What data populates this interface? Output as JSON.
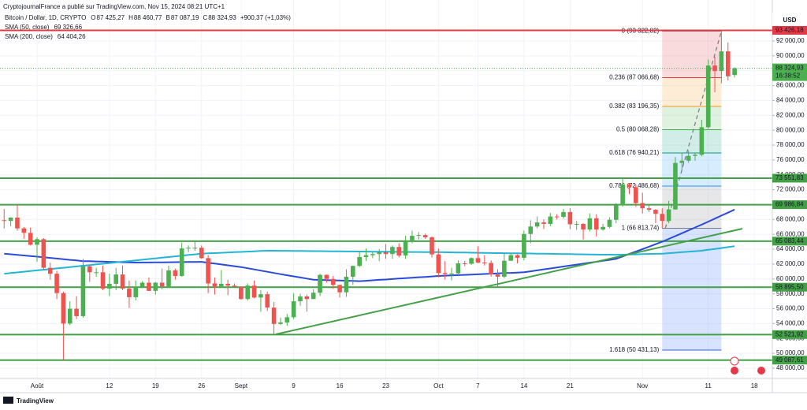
{
  "chart_data": {
    "type": "candlestick",
    "subtitle": "CryptojournalFrance a publié sur TradingView.com, Nov 15, 2024 08:21 UTC+1",
    "title": "Bitcoin / Dollar, 1D, CRYPTO",
    "quote": [
      {
        "key": "O",
        "text": "87 425,27"
      },
      {
        "key": "H",
        "text": "88 460,77"
      },
      {
        "key": "B",
        "text": "87 087,19"
      },
      {
        "key": "C",
        "text": "88 324,93"
      }
    ],
    "change": "+900,37 (+1,03%)",
    "currency": "USD",
    "source": "TradingView",
    "up_color": "#4caf50",
    "down_color": "#ef5350",
    "categories": [
      null,
      null,
      null,
      null,
      null,
      "Août",
      null,
      null,
      null,
      null,
      null,
      null,
      null,
      null,
      null,
      null,
      "12",
      null,
      null,
      null,
      null,
      null,
      null,
      "19",
      null,
      null,
      null,
      null,
      null,
      null,
      "26",
      null,
      null,
      null,
      null,
      null,
      "Sept",
      null,
      null,
      null,
      null,
      null,
      null,
      null,
      "9",
      null,
      null,
      null,
      null,
      null,
      null,
      "16",
      null,
      null,
      null,
      null,
      null,
      null,
      "23",
      null,
      null,
      null,
      null,
      null,
      null,
      null,
      "Oct",
      null,
      null,
      null,
      null,
      null,
      "7",
      null,
      null,
      null,
      null,
      null,
      null,
      "14",
      null,
      null,
      null,
      null,
      null,
      null,
      "21",
      null,
      null,
      null,
      null,
      null,
      null,
      null,
      null,
      null,
      null,
      "Nov",
      null,
      null,
      null,
      null,
      null,
      null,
      null,
      null,
      null,
      "11",
      null,
      null,
      null,
      null,
      null,
      null,
      "18"
    ],
    "open": [
      67900,
      67800,
      68250,
      66800,
      66200,
      64600,
      65350,
      61500,
      60700,
      58100,
      54000,
      56000,
      55000,
      61700,
      60900,
      60900,
      58700,
      59350,
      60600,
      58700,
      57550,
      58900,
      59500,
      58400,
      59500,
      59000,
      61150,
      60400,
      64100,
      64200,
      64200,
      62800,
      59400,
      59000,
      59350,
      59100,
      58950,
      57300,
      59100,
      57500,
      57950,
      56150,
      53950,
      54150,
      54850,
      57000,
      57650,
      57300,
      58150,
      60550,
      60000,
      59200,
      58200,
      60300,
      61750,
      62950,
      63200,
      63350,
      63600,
      63350,
      64300,
      63150,
      65200,
      65800,
      65900,
      65600,
      63300,
      60800,
      60650,
      60750,
      62100,
      62050,
      62800,
      62200,
      62150,
      60600,
      60300,
      62450,
      63200,
      62850,
      66050,
      67050,
      67600,
      67400,
      68400,
      68350,
      69000,
      67350,
      67400,
      66650,
      68150,
      66650,
      67000,
      67950,
      69900,
      72700,
      72350,
      70200,
      69500,
      69300,
      68750,
      67800,
      69350,
      75600,
      75900,
      76550,
      76700,
      80400,
      88700,
      87950,
      90600,
      87425.27,
      null,
      null,
      null
    ],
    "high": [
      69400,
      68300,
      70000,
      67000,
      66900,
      65600,
      65500,
      62200,
      61100,
      58300,
      57000,
      57700,
      62700,
      61800,
      61500,
      61800,
      60700,
      61500,
      61800,
      59800,
      59800,
      59700,
      60200,
      59600,
      61400,
      61800,
      61400,
      64900,
      64500,
      65000,
      64500,
      63200,
      60200,
      61200,
      59900,
      59400,
      59000,
      59400,
      59800,
      58500,
      58300,
      56900,
      54800,
      55300,
      58100,
      58000,
      57900,
      58600,
      60700,
      60600,
      60400,
      59200,
      61300,
      61800,
      63800,
      64100,
      63600,
      64000,
      64700,
      64500,
      64800,
      65800,
      66500,
      66300,
      66100,
      65700,
      64100,
      62400,
      61500,
      62500,
      62400,
      62900,
      64400,
      63200,
      62500,
      61300,
      63400,
      63500,
      63300,
      66500,
      67900,
      68400,
      68000,
      68900,
      68700,
      69400,
      69500,
      67800,
      67500,
      68800,
      68700,
      67400,
      68300,
      70200,
      73600,
      72900,
      72700,
      71600,
      69900,
      69400,
      69500,
      70500,
      76400,
      76900,
      77300,
      76900,
      81400,
      89500,
      89900,
      93450,
      91800,
      88460.77,
      null,
      null,
      null
    ],
    "low": [
      66800,
      67100,
      66500,
      65400,
      64500,
      62300,
      61200,
      59900,
      57300,
      49100,
      53800,
      54600,
      54800,
      59600,
      60300,
      58500,
      57700,
      58500,
      58500,
      56100,
      57100,
      58800,
      58400,
      57900,
      58600,
      58800,
      59900,
      60300,
      63600,
      63800,
      62700,
      58100,
      57900,
      58800,
      57800,
      58800,
      57200,
      57100,
      57400,
      55600,
      55700,
      52600,
      53800,
      53700,
      54600,
      56400,
      55600,
      57300,
      57700,
      59500,
      58700,
      57500,
      57600,
      59200,
      61600,
      62400,
      62800,
      62400,
      62700,
      62700,
      62900,
      62700,
      64800,
      65300,
      65400,
      62900,
      60200,
      59900,
      59800,
      60500,
      61700,
      61900,
      62100,
      61800,
      60300,
      58900,
      60100,
      62400,
      62100,
      62500,
      64800,
      66800,
      66700,
      67100,
      68000,
      68100,
      66700,
      66600,
      65300,
      66400,
      65700,
      66500,
      66800,
      67500,
      69700,
      71400,
      69700,
      68800,
      69000,
      67500,
      66800,
      67500,
      69300,
      74600,
      75600,
      75900,
      76500,
      80200,
      85100,
      86300,
      86700,
      87087.19,
      null,
      null,
      null
    ],
    "close": [
      67800,
      68250,
      66800,
      66200,
      64600,
      65350,
      61500,
      60700,
      58100,
      54000,
      56000,
      55000,
      61700,
      60900,
      60900,
      58700,
      59350,
      60600,
      58700,
      57550,
      58900,
      59500,
      58400,
      59500,
      59000,
      61150,
      60400,
      64100,
      64200,
      64200,
      62800,
      59400,
      59000,
      59350,
      59100,
      58950,
      57300,
      59100,
      57500,
      57950,
      56150,
      53950,
      54150,
      54850,
      57000,
      57650,
      57300,
      58150,
      60550,
      60000,
      59200,
      58200,
      60300,
      61750,
      62950,
      63200,
      63350,
      63600,
      63350,
      64300,
      63150,
      65200,
      65800,
      65900,
      65600,
      63300,
      60800,
      60650,
      60750,
      62100,
      62050,
      62800,
      62200,
      62150,
      60600,
      60300,
      62450,
      63200,
      62850,
      66050,
      67050,
      67600,
      67400,
      68400,
      68350,
      69000,
      67350,
      67400,
      66650,
      68150,
      66650,
      67000,
      67950,
      69900,
      72700,
      72350,
      70200,
      69500,
      69300,
      68750,
      67800,
      69350,
      75600,
      75900,
      76550,
      76700,
      80400,
      88700,
      87950,
      90600,
      87250,
      88324.93,
      null,
      null,
      null
    ],
    "series": [
      {
        "name": "SMA (50, close)",
        "color": "#2a4bd7",
        "last_value_label": "69 326,66",
        "values": [
          63400,
          63320,
          63240,
          63160,
          63080,
          63000,
          62910,
          62830,
          62740,
          62660,
          62570,
          62490,
          62400,
          62380,
          62350,
          62330,
          62300,
          62280,
          62250,
          62230,
          62200,
          62210,
          62220,
          62230,
          62240,
          62250,
          62260,
          62270,
          62280,
          62290,
          62300,
          62180,
          62070,
          61950,
          61830,
          61720,
          61600,
          61440,
          61280,
          61120,
          60960,
          60800,
          60650,
          60500,
          60350,
          60200,
          60050,
          59900,
          59870,
          59840,
          59810,
          59790,
          59760,
          59730,
          59700,
          59760,
          59820,
          59880,
          59930,
          59990,
          60050,
          60110,
          60170,
          60230,
          60280,
          60340,
          60400,
          60440,
          60480,
          60520,
          60550,
          60590,
          60630,
          60670,
          60710,
          60750,
          60790,
          60820,
          60860,
          60900,
          61030,
          61160,
          61290,
          61410,
          61540,
          61670,
          61800,
          61930,
          62060,
          62190,
          62310,
          62440,
          62570,
          62700,
          63030,
          63360,
          63690,
          64010,
          64340,
          64670,
          65000,
          65380,
          65770,
          66150,
          66530,
          66920,
          67300,
          67710,
          68110,
          68520,
          68920,
          69326.66,
          null,
          null,
          null
        ]
      },
      {
        "name": "SMA (200, close)",
        "color": "#22b5d4",
        "last_value_label": "64 404,26",
        "values": [
          60700,
          60790,
          60880,
          60970,
          61060,
          61150,
          61240,
          61330,
          61420,
          61510,
          61600,
          61690,
          61780,
          61870,
          61960,
          62050,
          62140,
          62230,
          62320,
          62410,
          62500,
          62590,
          62680,
          62770,
          62860,
          62950,
          63040,
          63130,
          63220,
          63310,
          63400,
          63440,
          63480,
          63520,
          63560,
          63600,
          63640,
          63680,
          63720,
          63760,
          63800,
          63790,
          63780,
          63780,
          63770,
          63760,
          63750,
          63740,
          63740,
          63730,
          63720,
          63710,
          63700,
          63700,
          63690,
          63680,
          63670,
          63660,
          63660,
          63650,
          63640,
          63630,
          63620,
          63620,
          63610,
          63600,
          63600,
          63590,
          63570,
          63560,
          63550,
          63530,
          63520,
          63510,
          63490,
          63480,
          63470,
          63460,
          63440,
          63430,
          63420,
          63400,
          63390,
          63380,
          63360,
          63350,
          63340,
          63320,
          63310,
          63300,
          63280,
          63270,
          63260,
          63250,
          63270,
          63290,
          63310,
          63340,
          63360,
          63380,
          63400,
          63470,
          63530,
          63600,
          63670,
          63730,
          63800,
          63920,
          64040,
          64160,
          64280,
          64404.26,
          null,
          null,
          null
        ]
      }
    ],
    "ylim": [
      46620,
      95600
    ],
    "yticks": [
      {
        "value": 48000,
        "label": "48 000,00"
      },
      {
        "value": 50000,
        "label": "50 000,00"
      },
      {
        "value": 52000,
        "label": "52 000,00"
      },
      {
        "value": 54000,
        "label": "54 000,00"
      },
      {
        "value": 56000,
        "label": "56 000,00"
      },
      {
        "value": 58000,
        "label": "58 000,00"
      },
      {
        "value": 60000,
        "label": "60 000,00"
      },
      {
        "value": 62000,
        "label": "62 000,00"
      },
      {
        "value": 64000,
        "label": "64 000,00"
      },
      {
        "value": 66000,
        "label": "66 000,00"
      },
      {
        "value": 68000,
        "label": "68 000,00"
      },
      {
        "value": 70000,
        "label": "70 000,00"
      },
      {
        "value": 72000,
        "label": "72 000,00"
      },
      {
        "value": 74000,
        "label": "74 000,00"
      },
      {
        "value": 76000,
        "label": "76 000,00"
      },
      {
        "value": 78000,
        "label": "78 000,00"
      },
      {
        "value": 80000,
        "label": "80 000,00"
      },
      {
        "value": 82000,
        "label": "82 000,00"
      },
      {
        "value": 84000,
        "label": "84 000,00"
      },
      {
        "value": 86000,
        "label": "86 000,00"
      },
      {
        "value": 88000,
        "label": "88 000,00"
      },
      {
        "value": 90000,
        "label": "90 000,00"
      },
      {
        "value": 92000,
        "label": "92 000,00"
      }
    ],
    "grid": true,
    "levels": [
      {
        "value": 93426.18,
        "label": "93 426,18",
        "color": "#e53945"
      },
      {
        "value": 73551.83,
        "label": "73 551,83",
        "color": "#43a047"
      },
      {
        "value": 69986.84,
        "label": "69 986,84",
        "color": "#43a047"
      },
      {
        "value": 65083.44,
        "label": "65 083,44",
        "color": "#43a047"
      },
      {
        "value": 58895.5,
        "label": "58 895,50",
        "color": "#43a047"
      },
      {
        "value": 52521.92,
        "label": "52 521,92",
        "color": "#43a047"
      },
      {
        "value": 49087.61,
        "label": "49 087,61",
        "color": "#43a047"
      }
    ],
    "fib": [
      {
        "value": 93322.82,
        "label": "0 (93 322,82)",
        "color": "#787b86"
      },
      {
        "value": 87066.68,
        "label": "0.236 (87 066,68)",
        "color": "#e53945"
      },
      {
        "value": 83196.35,
        "label": "0.382 (83 196,35)",
        "color": "#f59c1a"
      },
      {
        "value": 80068.28,
        "label": "0.5 (80 068,28)",
        "color": "#4caf50"
      },
      {
        "value": 76940.21,
        "label": "0.618 (76 940,21)",
        "color": "#089981"
      },
      {
        "value": 72486.68,
        "label": "0.786 (72 486,68)",
        "color": "#2196f3"
      },
      {
        "value": 66813.74,
        "label": "1 (66 813,74)",
        "color": "#787b86"
      },
      {
        "value": 50431.13,
        "label": "1.618 (50 431,13)",
        "color": "#2962ff"
      }
    ],
    "last_price": {
      "value": 88324.93,
      "label": "88 324,93"
    },
    "countdown": "16:38:52"
  }
}
